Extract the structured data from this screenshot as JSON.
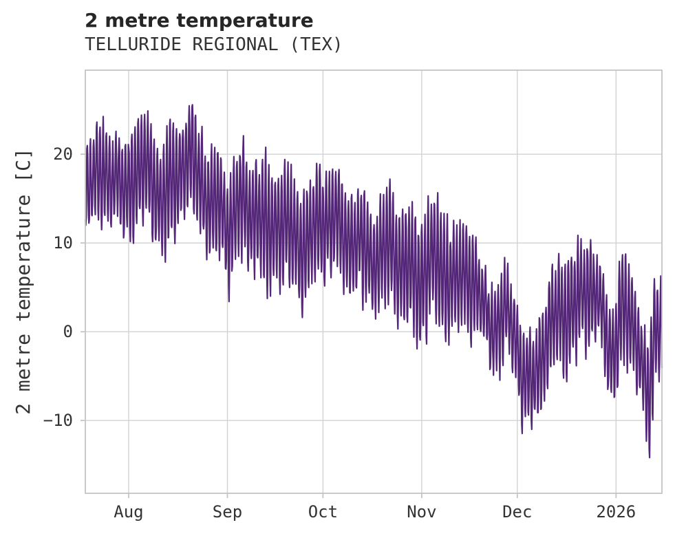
{
  "header": {
    "title": "2 metre temperature",
    "subtitle": "TELLURIDE REGIONAL (TEX)"
  },
  "chart_data": {
    "type": "line",
    "title": "2 metre temperature",
    "subtitle": "TELLURIDE REGIONAL (TEX)",
    "xlabel": "",
    "ylabel": "2 metre temperature [C]",
    "grid": true,
    "legend": "none",
    "line_color": "#542677",
    "grid_color": "#d2d2d2",
    "spine_color": "#c4c4c4",
    "ylim": [
      -18.2,
      29.47
    ],
    "yticks": [
      20,
      10,
      0,
      -10
    ],
    "ytick_labels": [
      "20",
      "10",
      "0",
      "−10"
    ],
    "x_span_days": 181,
    "x_tick_days": [
      13.6,
      44.6,
      74.6,
      105.6,
      135.6,
      166.6
    ],
    "x_tick_labels": [
      "Aug",
      "Sep",
      "Oct",
      "Nov",
      "Dec",
      "2026"
    ],
    "observed_extremes": {
      "max_c": 27.2,
      "max_near": "mid-late Aug",
      "min_c": -16.3,
      "min_near": "early Jan 2026",
      "cold_snap_early_dec_min_c": -12.3
    },
    "series": [
      {
        "name": "2 metre temperature",
        "samples_per_day": 8,
        "anchors_day_mean_amp": [
          [
            0,
            16.5,
            4.5
          ],
          [
            3,
            17,
            5
          ],
          [
            6,
            18,
            6
          ],
          [
            9,
            17.5,
            5.5
          ],
          [
            12,
            15.5,
            5.5
          ],
          [
            15,
            17.5,
            6.5
          ],
          [
            18,
            18.5,
            7
          ],
          [
            21,
            17.5,
            7
          ],
          [
            24,
            14.5,
            6
          ],
          [
            27,
            16.5,
            6.5
          ],
          [
            30,
            18.5,
            6.5
          ],
          [
            33,
            20,
            7
          ],
          [
            36,
            17,
            6
          ],
          [
            39,
            14.5,
            5.5
          ],
          [
            42,
            14,
            6
          ],
          [
            45,
            11.5,
            6
          ],
          [
            48,
            14.5,
            6.5
          ],
          [
            51,
            13.5,
            6
          ],
          [
            54,
            13.5,
            6.5
          ],
          [
            57,
            11,
            7.5
          ],
          [
            60,
            12.5,
            6
          ],
          [
            63,
            12,
            6
          ],
          [
            66,
            10.5,
            7
          ],
          [
            69,
            9.5,
            7
          ],
          [
            72,
            11.5,
            6
          ],
          [
            75,
            13,
            6.5
          ],
          [
            78,
            12.5,
            6
          ],
          [
            81,
            11,
            6
          ],
          [
            84,
            10,
            6
          ],
          [
            87,
            9.5,
            6.5
          ],
          [
            90,
            8,
            6
          ],
          [
            93,
            8.5,
            6.5
          ],
          [
            96,
            10,
            6
          ],
          [
            99,
            7.5,
            7
          ],
          [
            102,
            7,
            7
          ],
          [
            105,
            5.5,
            7
          ],
          [
            108,
            8,
            7.5
          ],
          [
            111,
            7.5,
            7
          ],
          [
            114,
            6,
            7
          ],
          [
            117,
            5.5,
            7
          ],
          [
            120,
            7,
            7
          ],
          [
            123,
            4.5,
            5.5
          ],
          [
            126,
            1.5,
            5
          ],
          [
            129,
            0.5,
            5.5
          ],
          [
            132,
            2,
            5.5
          ],
          [
            135,
            0,
            5
          ],
          [
            137,
            -4.5,
            5.5
          ],
          [
            140,
            -6.5,
            5.5
          ],
          [
            143,
            -3,
            5
          ],
          [
            146,
            0.5,
            6
          ],
          [
            149,
            2,
            6.5
          ],
          [
            152,
            2.5,
            6.5
          ],
          [
            155,
            3.5,
            6
          ],
          [
            158,
            5,
            5.5
          ],
          [
            161,
            4,
            4.5
          ],
          [
            164,
            -1.5,
            5
          ],
          [
            166,
            -2.5,
            5.5
          ],
          [
            168,
            3,
            6.5
          ],
          [
            171,
            1,
            5.5
          ],
          [
            174,
            -1.5,
            5
          ],
          [
            177,
            -8.5,
            7
          ],
          [
            179,
            0,
            6
          ],
          [
            181,
            1.5,
            5.5
          ]
        ]
      }
    ]
  }
}
